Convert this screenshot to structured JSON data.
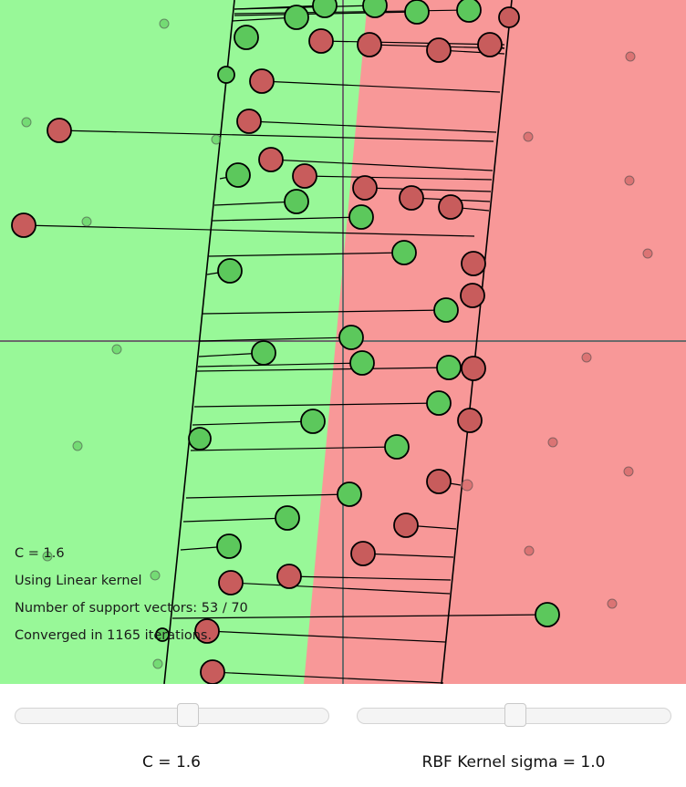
{
  "info": {
    "c_line": "C = 1.6",
    "kernel_line": "Using Linear kernel",
    "sv_line": "Number of support vectors: 53 / 70",
    "iter_line": "Converged in 1165 iterations."
  },
  "sliders": {
    "c": {
      "label": "C = 1.6",
      "value": 0.55
    },
    "sigma": {
      "label": "RBF Kernel sigma = 1.0",
      "value": 0.5
    }
  },
  "colors": {
    "positive_region": "#98f898",
    "negative_region": "#f89898",
    "positive_point": "#5cc85c",
    "negative_point": "#c85c5c"
  }
}
